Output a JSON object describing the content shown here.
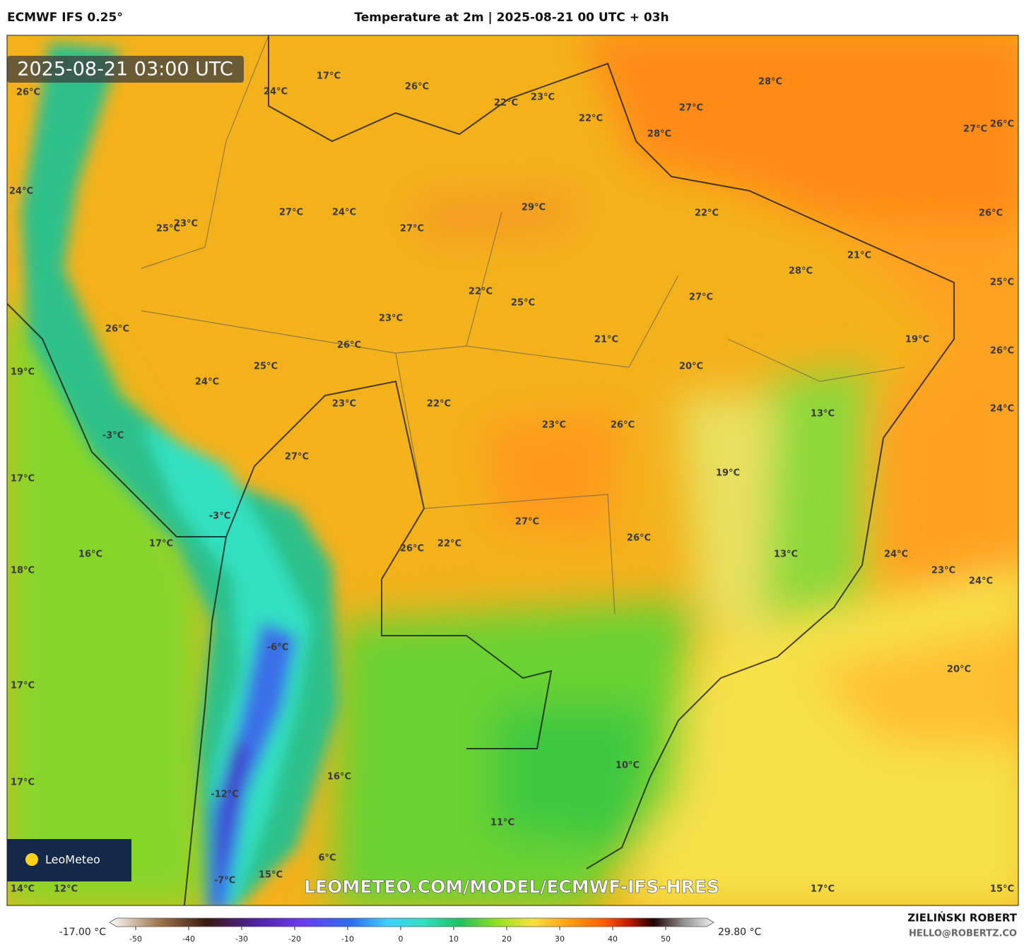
{
  "header": {
    "model": "ECMWF IFS 0.25°",
    "title": "Temperature at 2m | 2025-08-21 00 UTC + 03h"
  },
  "map": {
    "valid_time": "2025-08-21 03:00 UTC",
    "labels": [
      "26°C",
      "24°C",
      "17°C",
      "26°C",
      "22°C",
      "23°C",
      "22°C",
      "28°C",
      "27°C",
      "28°C",
      "27°C",
      "26°C",
      "24°C",
      "27°C",
      "24°C",
      "25°C",
      "23°C",
      "27°C",
      "29°C",
      "22°C",
      "26°C",
      "21°C",
      "28°C",
      "25°C",
      "27°C",
      "22°C",
      "25°C",
      "23°C",
      "21°C",
      "26°C",
      "26°C",
      "19°C",
      "26°C",
      "25°C",
      "20°C",
      "19°C",
      "24°C",
      "23°C",
      "22°C",
      "24°C",
      "13°C",
      "23°C",
      "26°C",
      "-3°C",
      "27°C",
      "19°C",
      "17°C",
      "-3°C",
      "27°C",
      "17°C",
      "26°C",
      "22°C",
      "26°C",
      "16°C",
      "13°C",
      "24°C",
      "18°C",
      "23°C",
      "24°C",
      "-6°C",
      "20°C",
      "17°C",
      "10°C",
      "16°C",
      "17°C",
      "-12°C",
      "11°C",
      "6°C",
      "15°C",
      "-7°C",
      "14°C",
      "12°C",
      "17°C",
      "15°C"
    ],
    "logo": "LeoMeteo",
    "watermark": "LEOMETEO.COM/MODEL/ECMWF-IFS-HRES"
  },
  "colorbar": {
    "min_label": "-17.00 °C",
    "max_label": "29.80 °C",
    "ticks": [
      -50,
      -40,
      -30,
      -20,
      -10,
      0,
      10,
      20,
      30,
      40,
      50
    ]
  },
  "footer": {
    "author": "ZIELIŃSKI ROBERT",
    "contact": "HELLO@ROBERTZ.CO"
  }
}
